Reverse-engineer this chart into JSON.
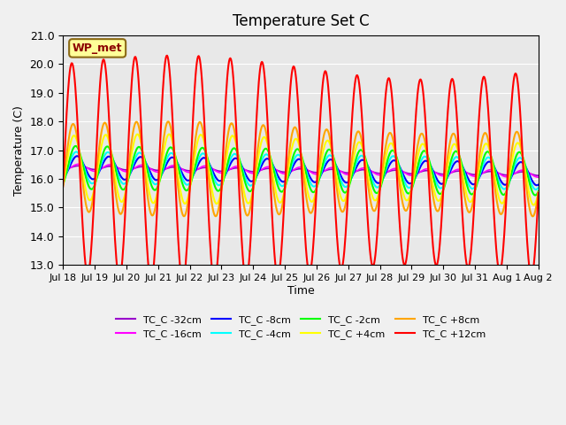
{
  "title": "Temperature Set C",
  "xlabel": "Time",
  "ylabel": "Temperature (C)",
  "ylim": [
    13.0,
    21.0
  ],
  "yticks": [
    13.0,
    14.0,
    15.0,
    16.0,
    17.0,
    18.0,
    19.0,
    20.0,
    21.0
  ],
  "x_tick_labels": [
    "Jul 18",
    "Jul 19",
    "Jul 20",
    "Jul 21",
    "Jul 22",
    "Jul 23",
    "Jul 24",
    "Jul 25",
    "Jul 26",
    "Jul 27",
    "Jul 28",
    "Jul 29",
    "Jul 30",
    "Jul 31",
    "Aug 1",
    "Aug 2"
  ],
  "annotation_text": "WP_met",
  "annotation_color": "#8B0000",
  "annotation_bg": "#FFFF99",
  "annotation_border": "#8B6914",
  "bg_color": "#E8E8E8",
  "series": [
    {
      "label": "TC_C -32cm",
      "color": "#9900CC",
      "lw": 1.2,
      "depth": -32
    },
    {
      "label": "TC_C -16cm",
      "color": "#FF00FF",
      "lw": 1.2,
      "depth": -16
    },
    {
      "label": "TC_C -8cm",
      "color": "#0000FF",
      "lw": 1.5,
      "depth": -8
    },
    {
      "label": "TC_C -4cm",
      "color": "#00FFFF",
      "lw": 1.5,
      "depth": -4
    },
    {
      "label": "TC_C -2cm",
      "color": "#00FF00",
      "lw": 1.5,
      "depth": -2
    },
    {
      "label": "TC_C +4cm",
      "color": "#FFFF00",
      "lw": 1.5,
      "depth": 4
    },
    {
      "label": "TC_C +8cm",
      "color": "#FFA500",
      "lw": 1.5,
      "depth": 8
    },
    {
      "label": "TC_C +12cm",
      "color": "#FF0000",
      "lw": 1.5,
      "depth": 12
    }
  ]
}
